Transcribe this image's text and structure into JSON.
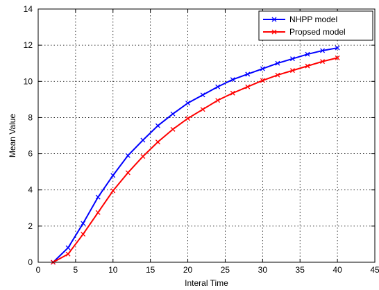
{
  "chart_data": {
    "type": "line",
    "title": "",
    "xlabel": "Interal Time",
    "ylabel": "Mean Value",
    "xlim": [
      0,
      45
    ],
    "ylim": [
      0,
      14
    ],
    "xticks": [
      0,
      5,
      10,
      15,
      20,
      25,
      30,
      35,
      40,
      45
    ],
    "yticks": [
      0,
      2,
      4,
      6,
      8,
      10,
      12,
      14
    ],
    "grid": true,
    "legend_position": "top-right",
    "x": [
      2,
      4,
      6,
      8,
      10,
      12,
      14,
      16,
      18,
      20,
      22,
      24,
      26,
      28,
      30,
      32,
      34,
      36,
      38,
      40
    ],
    "series": [
      {
        "name": "NHPP model",
        "color": "#0000ff",
        "marker": "x",
        "values": [
          0.0,
          0.8,
          2.15,
          3.6,
          4.8,
          5.9,
          6.75,
          7.55,
          8.2,
          8.8,
          9.25,
          9.7,
          10.1,
          10.4,
          10.7,
          11.0,
          11.25,
          11.5,
          11.7,
          11.85
        ]
      },
      {
        "name": "Propsed model",
        "color": "#ff0000",
        "marker": "x",
        "values": [
          0.0,
          0.45,
          1.55,
          2.75,
          3.95,
          4.95,
          5.85,
          6.65,
          7.35,
          7.95,
          8.45,
          8.95,
          9.35,
          9.7,
          10.05,
          10.35,
          10.6,
          10.85,
          11.1,
          11.3
        ]
      }
    ]
  }
}
